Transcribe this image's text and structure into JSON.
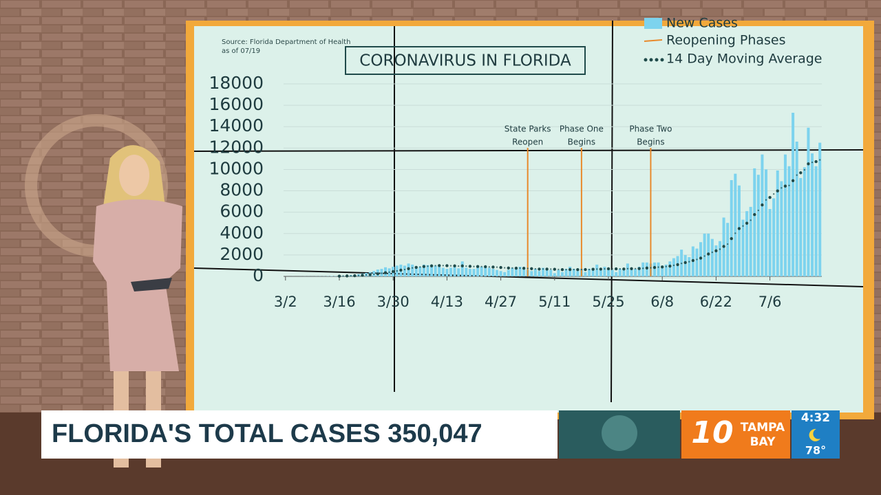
{
  "chart_data": {
    "type": "bar",
    "title": "CORONAVIRUS IN FLORIDA",
    "source": [
      "Source: Florida Department of Health",
      "as of 07/19"
    ],
    "categories": [
      "3/2",
      null,
      null,
      null,
      null,
      null,
      null,
      null,
      null,
      null,
      null,
      null,
      null,
      null,
      "3/16",
      null,
      null,
      null,
      null,
      null,
      null,
      null,
      null,
      null,
      null,
      null,
      null,
      null,
      "3/30",
      null,
      null,
      null,
      null,
      null,
      null,
      null,
      null,
      null,
      null,
      null,
      null,
      null,
      "4/13",
      null,
      null,
      null,
      null,
      null,
      null,
      null,
      null,
      null,
      null,
      null,
      null,
      null,
      "4/27",
      null,
      null,
      null,
      null,
      null,
      null,
      null,
      null,
      null,
      null,
      null,
      null,
      null,
      "5/11",
      null,
      null,
      null,
      null,
      null,
      null,
      null,
      null,
      null,
      null,
      null,
      null,
      null,
      "5/25",
      null,
      null,
      null,
      null,
      null,
      null,
      null,
      null,
      null,
      null,
      null,
      null,
      null,
      "6/8",
      null,
      null,
      null,
      null,
      null,
      null,
      null,
      null,
      null,
      null,
      null,
      null,
      null,
      "6/22",
      null,
      null,
      null,
      null,
      null,
      null,
      null,
      null,
      null,
      null,
      null,
      null,
      null,
      "7/6",
      null,
      null,
      null,
      null,
      null,
      null,
      null,
      null,
      null,
      null,
      null,
      null,
      null
    ],
    "series": [
      {
        "name": "New Cases",
        "color": "#7dd3ee",
        "values": [
          2,
          0,
          4,
          1,
          4,
          8,
          6,
          5,
          10,
          12,
          14,
          20,
          31,
          26,
          44,
          56,
          98,
          120,
          130,
          200,
          270,
          320,
          400,
          500,
          640,
          700,
          850,
          750,
          900,
          1000,
          1100,
          1000,
          1200,
          1100,
          950,
          900,
          1100,
          1050,
          1100,
          1000,
          900,
          800,
          700,
          800,
          900,
          750,
          1400,
          800,
          700,
          700,
          1000,
          900,
          1000,
          800,
          700,
          600,
          500,
          400,
          600,
          800,
          700,
          900,
          700,
          600,
          500,
          700,
          500,
          800,
          700,
          600,
          300,
          600,
          400,
          700,
          900,
          700,
          500,
          700,
          400,
          700,
          800,
          1100,
          700,
          900,
          700,
          600,
          400,
          700,
          700,
          1200,
          700,
          700,
          900,
          1300,
          1300,
          1200,
          1300,
          1300,
          1000,
          1100,
          1400,
          1700,
          1900,
          2500,
          2000,
          1800,
          2800,
          2600,
          3200,
          4000,
          4000,
          3500,
          2900,
          3300,
          5500,
          5000,
          9000,
          9600,
          8500,
          5300,
          6100,
          6500,
          10100,
          9500,
          11400,
          10000,
          6300,
          7300,
          9900,
          8900,
          11400,
          10300,
          15300,
          12600,
          9200,
          10200,
          13900,
          11500,
          10300,
          12500
        ]
      },
      {
        "name": "14 Day Moving Average",
        "color": "#1f4a4a",
        "values": [
          null,
          null,
          null,
          null,
          null,
          null,
          null,
          null,
          null,
          null,
          null,
          null,
          null,
          null,
          20,
          30,
          40,
          50,
          60,
          80,
          100,
          130,
          160,
          200,
          240,
          290,
          340,
          390,
          450,
          510,
          580,
          640,
          720,
          790,
          840,
          880,
          920,
          950,
          980,
          1000,
          1010,
          1010,
          1000,
          990,
          980,
          960,
          980,
          960,
          940,
          920,
          920,
          910,
          900,
          880,
          870,
          860,
          830,
          800,
          780,
          780,
          770,
          770,
          760,
          740,
          720,
          700,
          680,
          690,
          680,
          680,
          660,
          650,
          630,
          630,
          640,
          640,
          630,
          640,
          640,
          640,
          660,
          680,
          680,
          700,
          710,
          700,
          700,
          700,
          690,
          720,
          720,
          720,
          730,
          750,
          780,
          800,
          830,
          860,
          880,
          920,
          960,
          1030,
          1100,
          1210,
          1290,
          1370,
          1480,
          1580,
          1710,
          1900,
          2090,
          2250,
          2390,
          2540,
          2800,
          3020,
          3530,
          4030,
          4470,
          4710,
          4970,
          5250,
          5780,
          6170,
          6680,
          7150,
          7380,
          7700,
          7990,
          8270,
          8440,
          8500,
          8950,
          9470,
          9690,
          9960,
          10520,
          10660,
          10730,
          10890
        ]
      }
    ],
    "phases": {
      "name": "Reopening Phases",
      "color": "#e8892b",
      "labels": [
        [
          "State Parks",
          "Reopen"
        ],
        [
          "Phase One",
          "Begins"
        ],
        [
          "Phase Two",
          "Begins"
        ]
      ]
    },
    "ylim": [
      0,
      18000
    ],
    "yticks": [
      0,
      2000,
      4000,
      6000,
      8000,
      10000,
      12000,
      14000,
      16000,
      18000
    ],
    "grid": true
  },
  "broadcast": {
    "headline": "FLORIDA'S TOTAL CASES 350,047",
    "logo": [
      "10",
      "TAMPA",
      "BAY"
    ],
    "time": "4:32",
    "temperature": "78°"
  }
}
